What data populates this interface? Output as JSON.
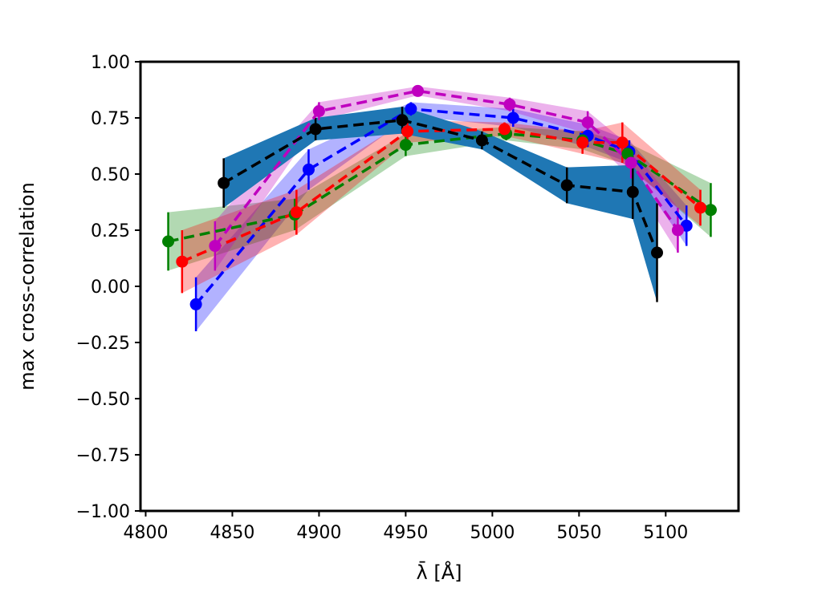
{
  "chart_data": {
    "type": "line",
    "title": "",
    "xlabel": "λ̄ [Å]",
    "ylabel": "max cross-correlation",
    "xlim": [
      4797,
      5142
    ],
    "ylim": [
      -1.0,
      1.0
    ],
    "xticks": [
      4800,
      4850,
      4900,
      4950,
      5000,
      5050,
      5100
    ],
    "yticks": [
      -1.0,
      -0.75,
      -0.5,
      -0.25,
      0.0,
      0.25,
      0.5,
      0.75,
      1.0
    ],
    "ytick_labels": [
      "−1.00",
      "−0.75",
      "−0.50",
      "−0.25",
      "0.00",
      "0.25",
      "0.50",
      "0.75",
      "1.00"
    ],
    "grid": false,
    "legend": "none",
    "series": [
      {
        "color": "#0000ff",
        "band_color": "#0000ff",
        "band_opacity": 0.3,
        "x": [
          4829,
          4894,
          4953,
          5012,
          5055,
          5079,
          5112
        ],
        "y": [
          -0.08,
          0.52,
          0.79,
          0.75,
          0.67,
          0.6,
          0.27
        ],
        "err": [
          0.12,
          0.09,
          0.03,
          0.04,
          0.05,
          0.05,
          0.09
        ]
      },
      {
        "color": "#008000",
        "band_color": "#008000",
        "band_opacity": 0.3,
        "x": [
          4813,
          4886,
          4950,
          5008,
          5052,
          5078,
          5126
        ],
        "y": [
          0.2,
          0.32,
          0.63,
          0.68,
          0.65,
          0.59,
          0.34
        ],
        "err": [
          0.13,
          0.07,
          0.05,
          0.03,
          0.04,
          0.05,
          0.12
        ]
      },
      {
        "color": "#ff0000",
        "band_color": "#ff0000",
        "band_opacity": 0.3,
        "x": [
          4821,
          4887,
          4951,
          5007,
          5052,
          5075,
          5120
        ],
        "y": [
          0.11,
          0.33,
          0.69,
          0.7,
          0.64,
          0.64,
          0.35
        ],
        "err": [
          0.14,
          0.1,
          0.05,
          0.03,
          0.05,
          0.09,
          0.08
        ]
      },
      {
        "color": "#bf00bf",
        "band_color": "#bf00bf",
        "band_opacity": 0.3,
        "x": [
          4840,
          4900,
          4957,
          5010,
          5055,
          5080,
          5107
        ],
        "y": [
          0.18,
          0.78,
          0.87,
          0.81,
          0.73,
          0.55,
          0.25
        ],
        "err": [
          0.11,
          0.04,
          0.02,
          0.03,
          0.05,
          0.07,
          0.1
        ]
      },
      {
        "color": "#000000",
        "band_color": "#1f77b4",
        "band_opacity": 1.0,
        "x": [
          4845,
          4898,
          4948,
          4994,
          5043,
          5081,
          5095
        ],
        "y": [
          0.46,
          0.7,
          0.74,
          0.65,
          0.45,
          0.42,
          0.15
        ],
        "err": [
          0.11,
          0.05,
          0.06,
          0.04,
          0.08,
          0.12,
          0.22
        ]
      }
    ]
  }
}
